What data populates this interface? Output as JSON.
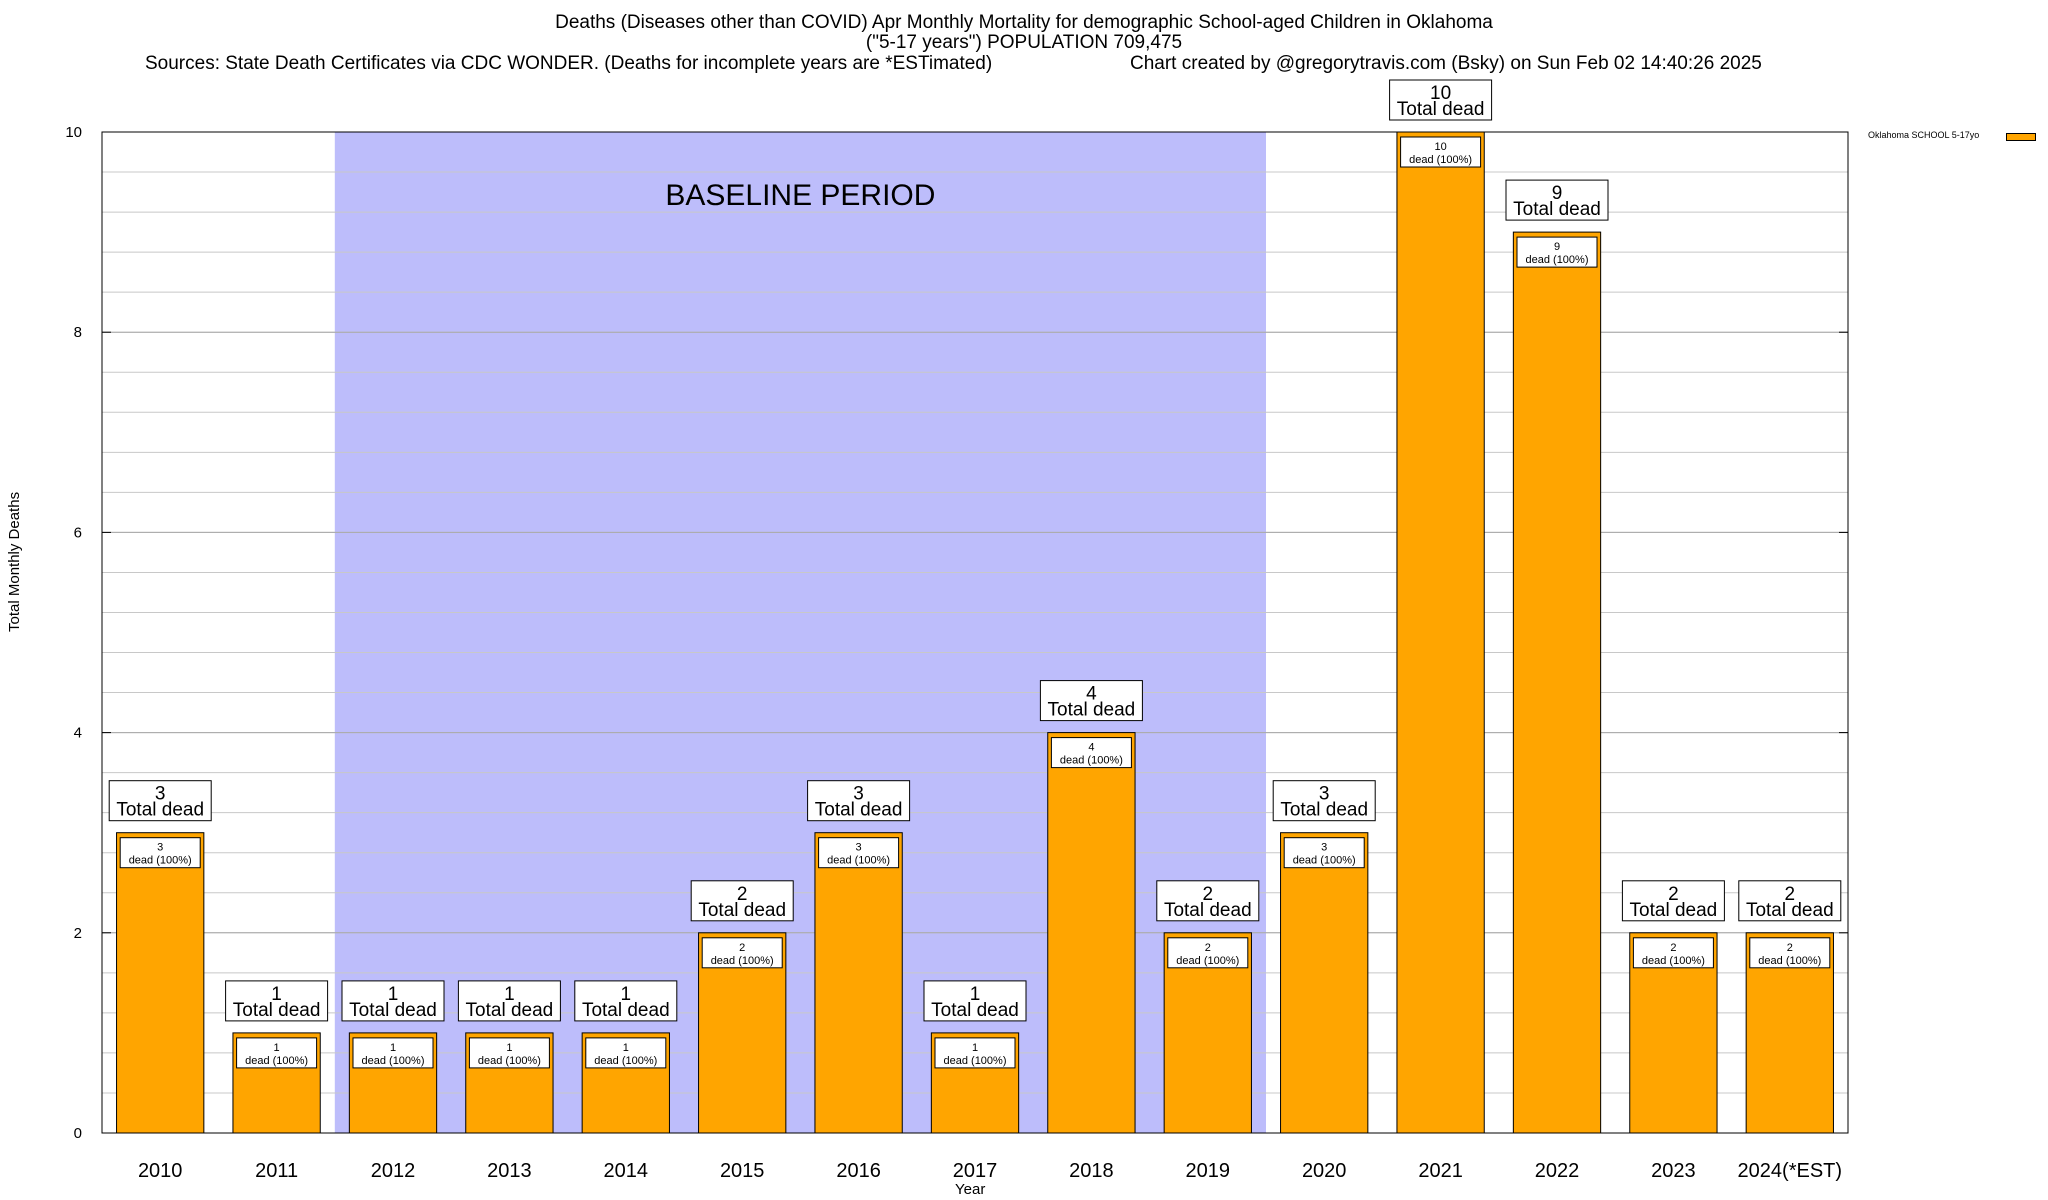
{
  "chart_data": {
    "type": "bar",
    "title_line1": "Deaths (Diseases other than COVID) Apr Monthly Mortality for demographic School-aged Children in Oklahoma",
    "title_line2": "(\"5-17 years\") POPULATION 709,475",
    "sources": "Sources: State Death Certificates via CDC WONDER. (Deaths for incomplete years are *ESTimated)",
    "credit": "Chart created by @gregorytravis.com (Bsky) on Sun Feb 02 14:40:26 2025",
    "xlabel": "Year",
    "ylabel": "Total Monthly Deaths",
    "ylim": [
      0,
      10
    ],
    "yticks": [
      0,
      2,
      4,
      6,
      8,
      10
    ],
    "minor_grid_step": 0.4,
    "categories": [
      "2010",
      "2011",
      "2012",
      "2013",
      "2014",
      "2015",
      "2016",
      "2017",
      "2018",
      "2019",
      "2020",
      "2021",
      "2022",
      "2023",
      "2024(*EST)"
    ],
    "series": [
      {
        "name": "Oklahoma SCHOOL 5-17yo",
        "color": "#FFA500",
        "values": [
          3,
          1,
          1,
          1,
          1,
          2,
          3,
          1,
          4,
          2,
          3,
          10,
          9,
          2,
          2
        ]
      }
    ],
    "bar_label_total_suffix": "Total dead",
    "bar_label_inner_suffix": "dead (100%)",
    "baseline": {
      "label": "BASELINE PERIOD",
      "from": "2012",
      "to": "2019",
      "color": "#BDBDFB"
    },
    "legend_position": "top-right, outside plot"
  }
}
